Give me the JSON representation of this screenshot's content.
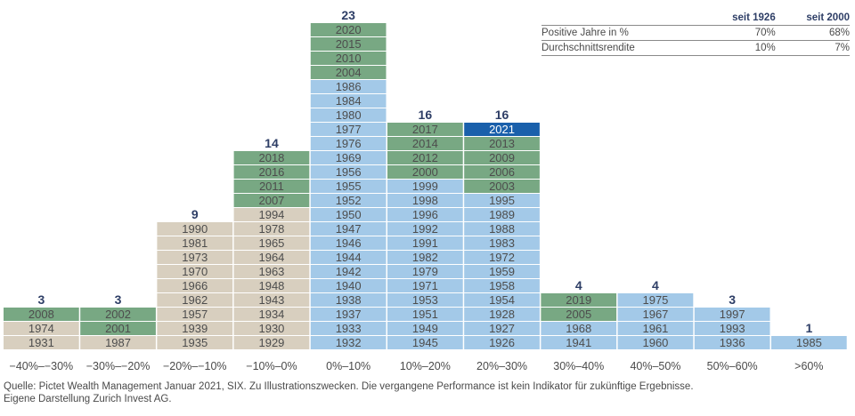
{
  "chart_data": {
    "type": "histogram",
    "categories": [
      "−40%–−30%",
      "−30%–−20%",
      "−20%–−10%",
      "−10%–0%",
      "0%–10%",
      "10%–20%",
      "20%–30%",
      "30%–40%",
      "40%–50%",
      "50%–60%",
      ">60%"
    ],
    "counts": [
      "3",
      "3",
      "9",
      "14",
      "23",
      "16",
      "16",
      "4",
      "4",
      "3",
      "1"
    ],
    "years": [
      [
        {
          "y": "1931",
          "c": "tan"
        },
        {
          "y": "1974",
          "c": "tan"
        },
        {
          "y": "2008",
          "c": "green"
        }
      ],
      [
        {
          "y": "1987",
          "c": "tan"
        },
        {
          "y": "2001",
          "c": "green"
        },
        {
          "y": "2002",
          "c": "green"
        }
      ],
      [
        {
          "y": "1935",
          "c": "tan"
        },
        {
          "y": "1939",
          "c": "tan"
        },
        {
          "y": "1957",
          "c": "tan"
        },
        {
          "y": "1962",
          "c": "tan"
        },
        {
          "y": "1966",
          "c": "tan"
        },
        {
          "y": "1970",
          "c": "tan"
        },
        {
          "y": "1973",
          "c": "tan"
        },
        {
          "y": "1981",
          "c": "tan"
        },
        {
          "y": "1990",
          "c": "tan"
        }
      ],
      [
        {
          "y": "1929",
          "c": "tan"
        },
        {
          "y": "1930",
          "c": "tan"
        },
        {
          "y": "1934",
          "c": "tan"
        },
        {
          "y": "1943",
          "c": "tan"
        },
        {
          "y": "1948",
          "c": "tan"
        },
        {
          "y": "1963",
          "c": "tan"
        },
        {
          "y": "1964",
          "c": "tan"
        },
        {
          "y": "1965",
          "c": "tan"
        },
        {
          "y": "1978",
          "c": "tan"
        },
        {
          "y": "1994",
          "c": "tan"
        },
        {
          "y": "2007",
          "c": "green"
        },
        {
          "y": "2011",
          "c": "green"
        },
        {
          "y": "2016",
          "c": "green"
        },
        {
          "y": "2018",
          "c": "green"
        }
      ],
      [
        {
          "y": "1932",
          "c": "blue"
        },
        {
          "y": "1933",
          "c": "blue"
        },
        {
          "y": "1937",
          "c": "blue"
        },
        {
          "y": "1938",
          "c": "blue"
        },
        {
          "y": "1940",
          "c": "blue"
        },
        {
          "y": "1942",
          "c": "blue"
        },
        {
          "y": "1944",
          "c": "blue"
        },
        {
          "y": "1946",
          "c": "blue"
        },
        {
          "y": "1947",
          "c": "blue"
        },
        {
          "y": "1950",
          "c": "blue"
        },
        {
          "y": "1952",
          "c": "blue"
        },
        {
          "y": "1955",
          "c": "blue"
        },
        {
          "y": "1956",
          "c": "blue"
        },
        {
          "y": "1969",
          "c": "blue"
        },
        {
          "y": "1976",
          "c": "blue"
        },
        {
          "y": "1977",
          "c": "blue"
        },
        {
          "y": "1980",
          "c": "blue"
        },
        {
          "y": "1984",
          "c": "blue"
        },
        {
          "y": "1986",
          "c": "blue"
        },
        {
          "y": "2004",
          "c": "green"
        },
        {
          "y": "2010",
          "c": "green"
        },
        {
          "y": "2015",
          "c": "green"
        },
        {
          "y": "2020",
          "c": "green"
        }
      ],
      [
        {
          "y": "1945",
          "c": "blue"
        },
        {
          "y": "1949",
          "c": "blue"
        },
        {
          "y": "1951",
          "c": "blue"
        },
        {
          "y": "1953",
          "c": "blue"
        },
        {
          "y": "1971",
          "c": "blue"
        },
        {
          "y": "1979",
          "c": "blue"
        },
        {
          "y": "1982",
          "c": "blue"
        },
        {
          "y": "1991",
          "c": "blue"
        },
        {
          "y": "1992",
          "c": "blue"
        },
        {
          "y": "1996",
          "c": "blue"
        },
        {
          "y": "1998",
          "c": "blue"
        },
        {
          "y": "1999",
          "c": "blue"
        },
        {
          "y": "2000",
          "c": "green"
        },
        {
          "y": "2012",
          "c": "green"
        },
        {
          "y": "2014",
          "c": "green"
        },
        {
          "y": "2017",
          "c": "green"
        }
      ],
      [
        {
          "y": "1926",
          "c": "blue"
        },
        {
          "y": "1927",
          "c": "blue"
        },
        {
          "y": "1928",
          "c": "blue"
        },
        {
          "y": "1954",
          "c": "blue"
        },
        {
          "y": "1958",
          "c": "blue"
        },
        {
          "y": "1959",
          "c": "blue"
        },
        {
          "y": "1972",
          "c": "blue"
        },
        {
          "y": "1983",
          "c": "blue"
        },
        {
          "y": "1988",
          "c": "blue"
        },
        {
          "y": "1989",
          "c": "blue"
        },
        {
          "y": "1995",
          "c": "blue"
        },
        {
          "y": "2003",
          "c": "green"
        },
        {
          "y": "2006",
          "c": "green"
        },
        {
          "y": "2009",
          "c": "green"
        },
        {
          "y": "2013",
          "c": "green"
        },
        {
          "y": "2021",
          "c": "highlight"
        }
      ],
      [
        {
          "y": "1941",
          "c": "blue"
        },
        {
          "y": "1968",
          "c": "blue"
        },
        {
          "y": "2005",
          "c": "green"
        },
        {
          "y": "2019",
          "c": "green"
        }
      ],
      [
        {
          "y": "1960",
          "c": "blue"
        },
        {
          "y": "1961",
          "c": "blue"
        },
        {
          "y": "1967",
          "c": "blue"
        },
        {
          "y": "1975",
          "c": "blue"
        }
      ],
      [
        {
          "y": "1936",
          "c": "blue"
        },
        {
          "y": "1993",
          "c": "blue"
        },
        {
          "y": "1997",
          "c": "blue"
        }
      ],
      [
        {
          "y": "1985",
          "c": "blue"
        }
      ]
    ],
    "colors": {
      "tan": "#d8cfbf",
      "green": "#78a883",
      "blue": "#a3c9e8",
      "highlight": "#1a60ab",
      "count": "#2e3e66"
    },
    "xlabel": "",
    "ylabel": ""
  },
  "stats": {
    "headers": [
      "",
      "seit 1926",
      "seit 2000"
    ],
    "rows": [
      {
        "label": "Positive Jahre in %",
        "v1926": "70%",
        "v2000": "68%"
      },
      {
        "label": "Durchschnittsrendite",
        "v1926": "10%",
        "v2000": "7%"
      }
    ]
  },
  "source": {
    "line1": "Quelle: Pictet Wealth Management Januar 2021, SIX. Zu Illustrationszwecken. Die vergangene Performance ist kein Indikator für zukünftige Ergebnisse.",
    "line2": "Eigene Darstellung Zurich Invest AG."
  }
}
